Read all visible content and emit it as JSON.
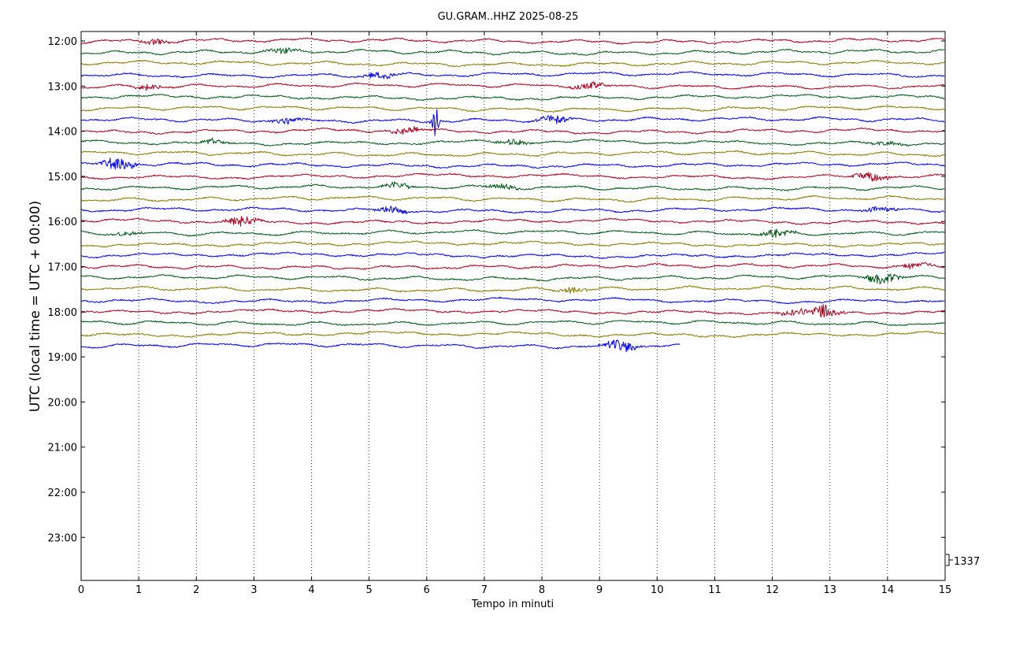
{
  "chart_data": {
    "type": "line",
    "title": "GU.GRAM..HHZ 2025-08-25",
    "xlabel": "Tempo in minuti",
    "ylabel": "UTC (local time = UTC + 00:00)",
    "xlim": [
      0,
      15
    ],
    "x_ticks": [
      "0",
      "1",
      "2",
      "3",
      "4",
      "5",
      "6",
      "7",
      "8",
      "9",
      "10",
      "11",
      "12",
      "13",
      "14",
      "15"
    ],
    "y_ticks": [
      "12:00",
      "13:00",
      "14:00",
      "15:00",
      "16:00",
      "17:00",
      "18:00",
      "19:00",
      "20:00",
      "21:00",
      "22:00",
      "23:00"
    ],
    "grid": "vertical dotted",
    "trace_interval_minutes": 15,
    "trace_colors": [
      "#b00020",
      "#005a17",
      "#8b7a00",
      "#0000ff"
    ],
    "traces_count": 28,
    "last_trace_end_minute": 10.4,
    "scale_label": "1337",
    "events": [
      {
        "trace": 0,
        "minute": 1.3,
        "amp": 1.6
      },
      {
        "trace": 1,
        "minute": 3.5,
        "amp": 1.6
      },
      {
        "trace": 3,
        "minute": 5.2,
        "amp": 2.4
      },
      {
        "trace": 4,
        "minute": 1.2,
        "amp": 1.8
      },
      {
        "trace": 4,
        "minute": 8.8,
        "amp": 2.0
      },
      {
        "trace": 7,
        "minute": 3.6,
        "amp": 1.8
      },
      {
        "trace": 7,
        "minute": 6.15,
        "amp": 9.0
      },
      {
        "trace": 7,
        "minute": 8.2,
        "amp": 2.6
      },
      {
        "trace": 8,
        "minute": 5.6,
        "amp": 2.0
      },
      {
        "trace": 9,
        "minute": 2.3,
        "amp": 1.6
      },
      {
        "trace": 9,
        "minute": 7.5,
        "amp": 1.8
      },
      {
        "trace": 9,
        "minute": 14.0,
        "amp": 1.6
      },
      {
        "trace": 11,
        "minute": 0.65,
        "amp": 4.0
      },
      {
        "trace": 12,
        "minute": 13.7,
        "amp": 2.4
      },
      {
        "trace": 13,
        "minute": 5.5,
        "amp": 1.6
      },
      {
        "trace": 13,
        "minute": 7.3,
        "amp": 1.6
      },
      {
        "trace": 15,
        "minute": 5.4,
        "amp": 2.0
      },
      {
        "trace": 15,
        "minute": 13.9,
        "amp": 1.6
      },
      {
        "trace": 16,
        "minute": 2.8,
        "amp": 3.0
      },
      {
        "trace": 17,
        "minute": 0.8,
        "amp": 1.6
      },
      {
        "trace": 17,
        "minute": 12.1,
        "amp": 3.2
      },
      {
        "trace": 20,
        "minute": 14.5,
        "amp": 1.6
      },
      {
        "trace": 21,
        "minute": 13.9,
        "amp": 3.6
      },
      {
        "trace": 22,
        "minute": 8.5,
        "amp": 1.8
      },
      {
        "trace": 24,
        "minute": 12.9,
        "amp": 4.0
      },
      {
        "trace": 24,
        "minute": 12.35,
        "amp": 2.0
      },
      {
        "trace": 27,
        "minute": 9.35,
        "amp": 3.6
      }
    ]
  }
}
